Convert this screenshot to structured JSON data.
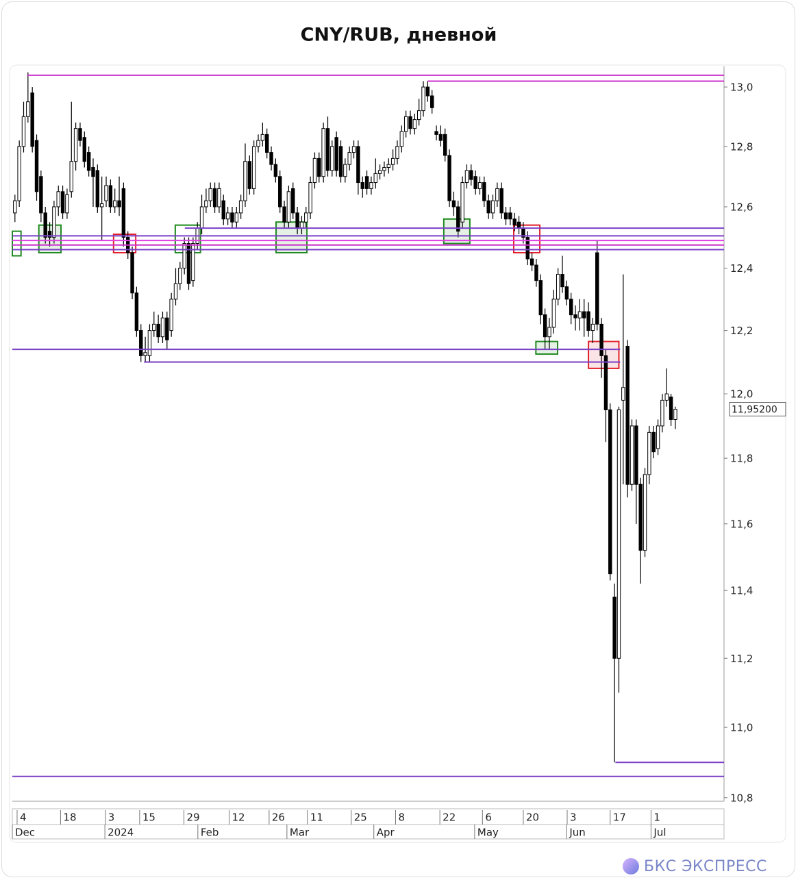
{
  "chart_data": {
    "type": "candlestick",
    "title": "CNY/RUB, дневной",
    "log_scale": true,
    "open": [
      12.58,
      12.62,
      12.8,
      12.9,
      12.98,
      12.82,
      12.7,
      12.58,
      12.52,
      12.5,
      12.6,
      12.65,
      12.58,
      12.65,
      12.75,
      12.86,
      12.83,
      12.78,
      12.73,
      12.72,
      12.6,
      12.62,
      12.67,
      12.6,
      12.62,
      12.66,
      12.5,
      12.45,
      12.32,
      12.2,
      12.12,
      12.12,
      12.2,
      12.22,
      12.18,
      12.24,
      12.2,
      12.3,
      12.35,
      12.4,
      12.48,
      12.36,
      12.48,
      12.53,
      12.6,
      12.62,
      12.66,
      12.6,
      12.62,
      12.56,
      12.58,
      12.55,
      12.58,
      12.62,
      12.75,
      12.66,
      12.8,
      12.82,
      12.84,
      12.78,
      12.74,
      12.7,
      12.6,
      12.55,
      12.66,
      12.58,
      12.53,
      12.55,
      12.58,
      12.68,
      12.76,
      12.7,
      12.86,
      12.72,
      12.83,
      12.8,
      12.7,
      12.74,
      12.78,
      12.8,
      12.68,
      12.7,
      12.66,
      12.68,
      12.71,
      12.72,
      12.73,
      12.74,
      12.76,
      12.8,
      12.85,
      12.9,
      12.86,
      12.89,
      12.92,
      13.0,
      12.97,
      12.85,
      12.84,
      12.84,
      12.77,
      12.62,
      12.6,
      12.55,
      12.68,
      12.72,
      12.7,
      12.66,
      12.68,
      12.62,
      12.58,
      12.62,
      12.66,
      12.58,
      12.58,
      12.56,
      12.55,
      12.53,
      12.5,
      12.43,
      12.41,
      12.36,
      12.25,
      12.18,
      12.21,
      12.3,
      12.38,
      12.34,
      12.3,
      12.25,
      12.24,
      12.26,
      12.26,
      12.2,
      12.45,
      12.22,
      12.12,
      11.95,
      11.38,
      11.2,
      11.98,
      12.15,
      11.72,
      11.9,
      11.72,
      11.52,
      11.75,
      11.88,
      11.83,
      11.9,
      11.98,
      11.99,
      11.92
    ],
    "high": [
      12.64,
      12.82,
      12.95,
      13.05,
      13.0,
      12.84,
      12.72,
      12.6,
      12.55,
      12.62,
      12.67,
      12.67,
      12.66,
      12.95,
      12.88,
      12.88,
      12.85,
      12.8,
      12.76,
      12.74,
      12.7,
      12.7,
      12.69,
      12.66,
      12.7,
      12.68,
      12.52,
      12.47,
      12.34,
      12.22,
      12.18,
      12.22,
      12.26,
      12.25,
      12.26,
      12.26,
      12.32,
      12.4,
      12.42,
      12.5,
      12.5,
      12.5,
      12.55,
      12.64,
      12.66,
      12.68,
      12.68,
      12.68,
      12.64,
      12.6,
      12.6,
      12.6,
      12.64,
      12.81,
      12.77,
      12.82,
      12.84,
      12.88,
      12.86,
      12.8,
      12.76,
      12.72,
      12.62,
      12.67,
      12.68,
      12.6,
      12.57,
      12.6,
      12.7,
      12.78,
      12.78,
      12.88,
      12.9,
      12.82,
      12.85,
      12.82,
      12.76,
      12.8,
      12.82,
      12.82,
      12.7,
      12.72,
      12.7,
      12.76,
      12.74,
      12.75,
      12.76,
      12.79,
      12.82,
      12.87,
      12.92,
      12.92,
      12.91,
      12.96,
      13.02,
      13.02,
      12.99,
      12.87,
      12.87,
      12.86,
      12.79,
      12.65,
      12.62,
      12.7,
      12.74,
      12.74,
      12.72,
      12.7,
      12.7,
      12.64,
      12.64,
      12.68,
      12.68,
      12.6,
      12.6,
      12.58,
      12.57,
      12.55,
      12.52,
      12.45,
      12.43,
      12.38,
      12.27,
      12.24,
      12.33,
      12.4,
      12.44,
      12.36,
      12.32,
      12.28,
      12.3,
      12.3,
      12.29,
      12.24,
      12.49,
      12.24,
      12.14,
      11.97,
      11.42,
      11.96,
      12.38,
      12.17,
      11.92,
      11.92,
      11.74,
      11.77,
      11.9,
      11.9,
      11.92,
      12.0,
      12.08,
      12.0,
      11.96
    ],
    "low": [
      12.55,
      12.6,
      12.78,
      12.88,
      12.78,
      12.62,
      12.55,
      12.48,
      12.47,
      12.48,
      12.57,
      12.56,
      12.56,
      12.63,
      12.72,
      12.8,
      12.73,
      12.7,
      12.6,
      12.58,
      12.49,
      12.6,
      12.58,
      12.58,
      12.57,
      12.47,
      12.43,
      12.3,
      12.18,
      12.1,
      12.1,
      12.1,
      12.18,
      12.16,
      12.16,
      12.14,
      12.18,
      12.28,
      12.33,
      12.38,
      12.33,
      12.34,
      12.46,
      12.51,
      12.58,
      12.6,
      12.58,
      12.58,
      12.54,
      12.54,
      12.53,
      12.53,
      12.56,
      12.6,
      12.64,
      12.64,
      12.78,
      12.8,
      12.76,
      12.72,
      12.68,
      12.58,
      12.53,
      12.53,
      12.56,
      12.51,
      12.51,
      12.53,
      12.56,
      12.66,
      12.68,
      12.68,
      12.7,
      12.7,
      12.7,
      12.68,
      12.68,
      12.72,
      12.76,
      12.64,
      12.63,
      12.64,
      12.64,
      12.66,
      12.69,
      12.7,
      12.71,
      12.72,
      12.74,
      12.78,
      12.83,
      12.84,
      12.84,
      12.87,
      12.9,
      12.95,
      12.91,
      12.82,
      12.8,
      12.75,
      12.6,
      12.57,
      12.5,
      12.53,
      12.66,
      12.67,
      12.64,
      12.64,
      12.6,
      12.56,
      12.56,
      12.6,
      12.56,
      12.54,
      12.54,
      12.52,
      12.51,
      12.48,
      12.41,
      12.39,
      12.34,
      12.22,
      12.14,
      12.14,
      12.19,
      12.28,
      12.32,
      12.28,
      12.22,
      12.2,
      12.2,
      12.18,
      12.18,
      12.16,
      12.2,
      12.05,
      11.85,
      11.43,
      10.9,
      11.1,
      11.72,
      11.68,
      11.7,
      11.6,
      11.42,
      11.5,
      11.72,
      11.8,
      11.81,
      11.88,
      11.96,
      11.9,
      11.89
    ],
    "close": [
      12.62,
      12.8,
      12.9,
      12.95,
      12.8,
      12.65,
      12.58,
      12.5,
      12.5,
      12.6,
      12.65,
      12.58,
      12.64,
      12.75,
      12.86,
      12.82,
      12.75,
      12.72,
      12.7,
      12.6,
      12.61,
      12.67,
      12.6,
      12.62,
      12.6,
      12.5,
      12.45,
      12.32,
      12.2,
      12.12,
      12.13,
      12.2,
      12.22,
      12.18,
      12.24,
      12.17,
      12.3,
      12.35,
      12.4,
      12.48,
      12.35,
      12.48,
      12.53,
      12.6,
      12.62,
      12.66,
      12.6,
      12.66,
      12.56,
      12.58,
      12.55,
      12.58,
      12.62,
      12.75,
      12.66,
      12.8,
      12.82,
      12.84,
      12.78,
      12.74,
      12.7,
      12.6,
      12.55,
      12.65,
      12.58,
      12.53,
      12.55,
      12.58,
      12.68,
      12.76,
      12.7,
      12.86,
      12.72,
      12.8,
      12.72,
      12.7,
      12.74,
      12.78,
      12.8,
      12.68,
      12.66,
      12.66,
      12.68,
      12.71,
      12.72,
      12.73,
      12.74,
      12.76,
      12.8,
      12.85,
      12.9,
      12.86,
      12.89,
      12.92,
      13.0,
      12.97,
      12.93,
      12.84,
      12.82,
      12.77,
      12.62,
      12.6,
      12.52,
      12.68,
      12.72,
      12.69,
      12.66,
      12.68,
      12.62,
      12.58,
      12.62,
      12.66,
      12.58,
      12.56,
      12.56,
      12.54,
      12.53,
      12.5,
      12.43,
      12.41,
      12.36,
      12.25,
      12.18,
      12.21,
      12.3,
      12.38,
      12.34,
      12.3,
      12.25,
      12.24,
      12.26,
      12.24,
      12.2,
      12.22,
      12.22,
      12.12,
      11.95,
      11.45,
      11.2,
      11.95,
      12.02,
      11.72,
      11.9,
      11.72,
      11.52,
      11.75,
      11.88,
      11.82,
      11.9,
      11.98,
      12.0,
      11.92,
      11.952
    ],
    "up_color": "#ffffff",
    "down_color": "#000000",
    "xlim": [
      -0.6,
      163.2
    ],
    "ylim": [
      10.79,
      13.07
    ],
    "yticks": [
      {
        "value": 10.8,
        "label": "10,8"
      },
      {
        "value": 11.0,
        "label": "11,0"
      },
      {
        "value": 11.2,
        "label": "11,2"
      },
      {
        "value": 11.4,
        "label": "11,4"
      },
      {
        "value": 11.6,
        "label": "11,6"
      },
      {
        "value": 11.8,
        "label": "11,8"
      },
      {
        "value": 12.0,
        "label": "12,0"
      },
      {
        "value": 12.2,
        "label": "12,2"
      },
      {
        "value": 12.4,
        "label": "12,4"
      },
      {
        "value": 12.6,
        "label": "12,6"
      },
      {
        "value": 12.8,
        "label": "12,8"
      },
      {
        "value": 13.0,
        "label": "13,0"
      }
    ],
    "xticks": [
      {
        "value": 0.5,
        "label": "4"
      },
      {
        "value": 10.5,
        "label": "18"
      },
      {
        "value": 20.8,
        "label": "3"
      },
      {
        "value": 28.7,
        "label": "15"
      },
      {
        "value": 38.9,
        "label": "29"
      },
      {
        "value": 49.3,
        "label": "12"
      },
      {
        "value": 58.5,
        "label": "26"
      },
      {
        "value": 67.3,
        "label": "11"
      },
      {
        "value": 77.4,
        "label": "25"
      },
      {
        "value": 87.6,
        "label": "8"
      },
      {
        "value": 97.8,
        "label": "22"
      },
      {
        "value": 107.6,
        "label": "6"
      },
      {
        "value": 117,
        "label": "20"
      },
      {
        "value": 127.1,
        "label": "3"
      },
      {
        "value": 137,
        "label": "17"
      },
      {
        "value": 146.4,
        "label": "1"
      }
    ],
    "month_ticks": [
      {
        "value": -0.6,
        "label": "Dec"
      },
      {
        "value": 20.7,
        "label": "2024"
      },
      {
        "value": 42.1,
        "label": "Feb"
      },
      {
        "value": 62.6,
        "label": "Mar"
      },
      {
        "value": 82.6,
        "label": "Apr"
      },
      {
        "value": 105.8,
        "label": "May"
      },
      {
        "value": 127,
        "label": "Jun"
      },
      {
        "value": 146.4,
        "label": "Jul"
      }
    ],
    "levels": [
      {
        "value": 13.04,
        "from": 2.8,
        "color": "#cc33cc"
      },
      {
        "value": 13.02,
        "from": 95,
        "color": "#cc33cc"
      },
      {
        "value": 12.53,
        "from": 39.1,
        "color": "#7a3fc8"
      },
      {
        "value": 12.505,
        "from": -0.6,
        "color": "#7a3fc8"
      },
      {
        "value": 12.49,
        "from": -0.6,
        "color": "#e040e0"
      },
      {
        "value": 12.475,
        "from": -0.6,
        "color": "#cc33cc"
      },
      {
        "value": 12.46,
        "from": -0.6,
        "color": "#7a3fc8"
      },
      {
        "value": 12.14,
        "from": -0.6,
        "to": 139.3,
        "color": "#7a3fc8"
      },
      {
        "value": 12.1,
        "from": 29.7,
        "to": 139.3,
        "color": "#7a3fc8"
      },
      {
        "value": 10.9,
        "from": 138.2,
        "color": "#7a3fc8"
      },
      {
        "value": 10.86,
        "from": -0.6,
        "color": "#7a3fc8"
      }
    ],
    "zones": [
      {
        "x0": -0.6,
        "x1": 1.4,
        "y0": 12.44,
        "y1": 12.52,
        "color": "#1f8a1f",
        "filled": false
      },
      {
        "x0": 5.5,
        "x1": 10.6,
        "y0": 12.45,
        "y1": 12.54,
        "color": "#1f8a1f",
        "filled": true
      },
      {
        "x0": 22.7,
        "x1": 27.8,
        "y0": 12.45,
        "y1": 12.51,
        "color": "#e0202a",
        "filled": false
      },
      {
        "x0": 36.9,
        "x1": 42.7,
        "y0": 12.45,
        "y1": 12.54,
        "color": "#1f8a1f",
        "filled": false
      },
      {
        "x0": 60.1,
        "x1": 67.2,
        "y0": 12.45,
        "y1": 12.55,
        "color": "#1f8a1f",
        "filled": true
      },
      {
        "x0": 98.7,
        "x1": 104.7,
        "y0": 12.48,
        "y1": 12.56,
        "color": "#1f8a1f",
        "filled": true
      },
      {
        "x0": 114.8,
        "x1": 120.8,
        "y0": 12.45,
        "y1": 12.54,
        "color": "#e0202a",
        "filled": false
      },
      {
        "x0": 119.9,
        "x1": 124.9,
        "y0": 12.125,
        "y1": 12.165,
        "color": "#1f8a1f",
        "filled": true
      },
      {
        "x0": 132,
        "x1": 139,
        "y0": 12.08,
        "y1": 12.165,
        "color": "#e0202a",
        "filled": true
      }
    ],
    "last_price": {
      "value": 11.952,
      "label": "11,95200"
    }
  },
  "brand": "БКС ЭКСПРЕСС"
}
